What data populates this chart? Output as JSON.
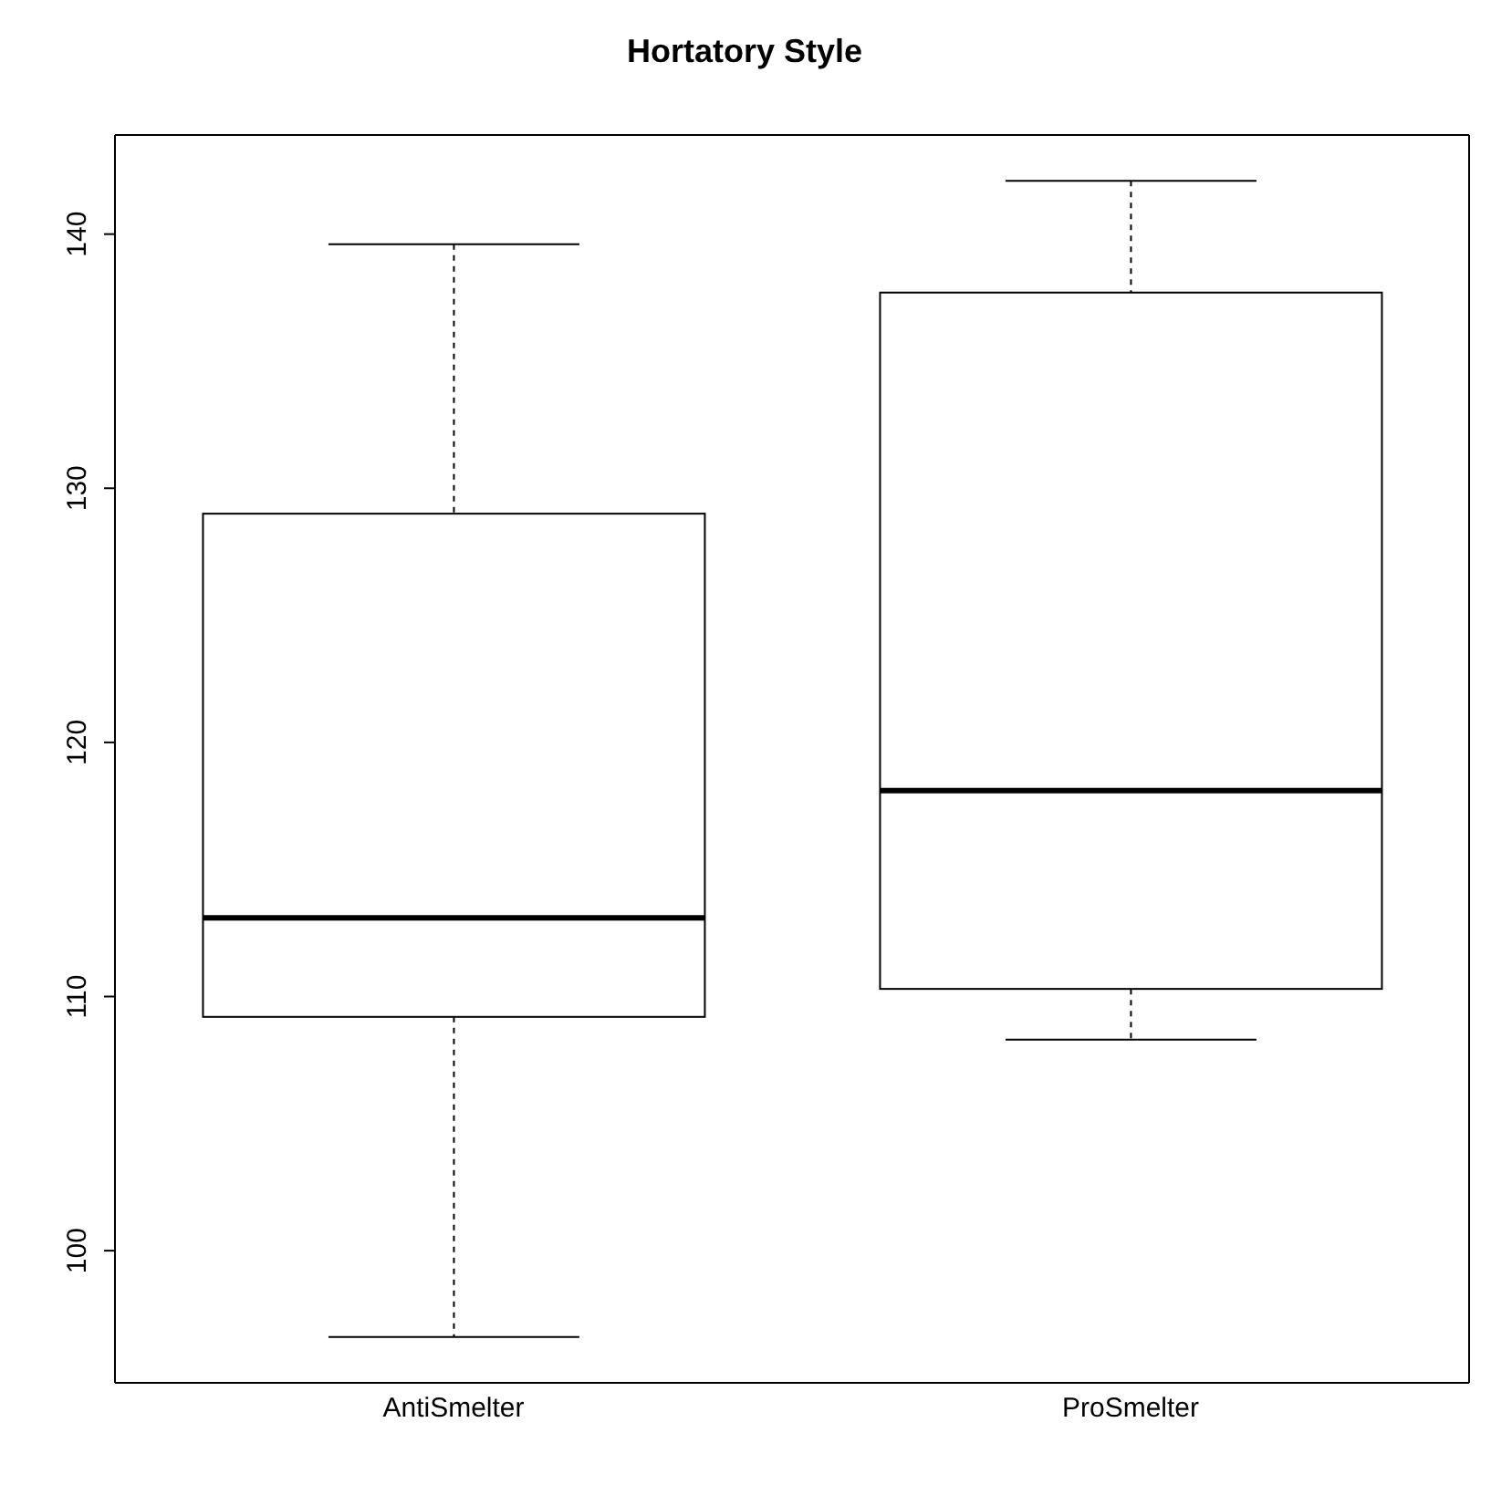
{
  "chart_data": {
    "type": "box",
    "title": "Hortatory Style",
    "categories": [
      "AntiSmelter",
      "ProSmelter"
    ],
    "boxes": [
      {
        "low": 96.6,
        "q1": 109.2,
        "median": 113.1,
        "q3": 129.0,
        "high": 139.6
      },
      {
        "low": 108.3,
        "q1": 110.3,
        "median": 118.1,
        "q3": 137.7,
        "high": 142.1
      }
    ],
    "ylim": [
      94.8,
      143.9
    ],
    "yticks": [
      100,
      110,
      120,
      130,
      140
    ]
  }
}
